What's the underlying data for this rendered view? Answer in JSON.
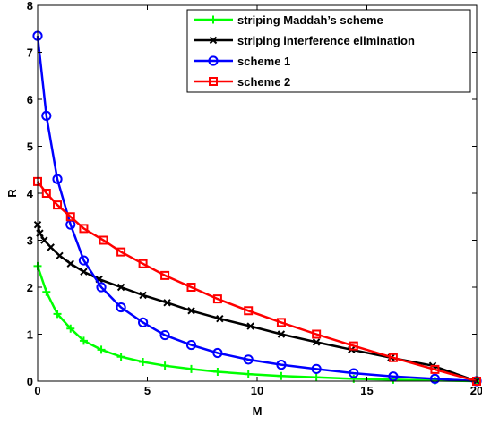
{
  "chart_data": {
    "type": "line",
    "xlabel": "M",
    "ylabel": "R",
    "xlim": [
      0,
      20
    ],
    "ylim": [
      0,
      8
    ],
    "xticks": [
      "0",
      "5",
      "10",
      "15",
      "20"
    ],
    "yticks": [
      "0",
      "1",
      "2",
      "3",
      "4",
      "5",
      "6",
      "7",
      "8"
    ],
    "grid": false,
    "legend_position": "top-right",
    "series": [
      {
        "name": "striping Maddah’s scheme",
        "color": "#00ff00",
        "marker": "plus",
        "x": [
          0,
          0.4,
          0.9,
          1.5,
          2.1,
          2.9,
          3.8,
          4.8,
          5.8,
          7.0,
          8.2,
          9.6,
          11.1,
          12.7,
          14.4,
          16.2,
          18.1,
          20
        ],
        "y": [
          2.45,
          1.9,
          1.43,
          1.12,
          0.86,
          0.67,
          0.52,
          0.41,
          0.33,
          0.26,
          0.2,
          0.15,
          0.11,
          0.08,
          0.05,
          0.03,
          0.015,
          0
        ]
      },
      {
        "name": "striping interference elimination",
        "color": "#000000",
        "marker": "x",
        "x": [
          0,
          0.1,
          0.3,
          0.6,
          1.0,
          1.5,
          2.1,
          2.8,
          3.8,
          4.8,
          5.9,
          7.0,
          8.3,
          9.7,
          11.1,
          12.7,
          14.3,
          16.1,
          18.0,
          20
        ],
        "y": [
          3.33,
          3.15,
          3.0,
          2.85,
          2.67,
          2.5,
          2.33,
          2.17,
          2.0,
          1.83,
          1.67,
          1.5,
          1.33,
          1.17,
          1.0,
          0.83,
          0.67,
          0.5,
          0.33,
          0
        ]
      },
      {
        "name": "scheme 1",
        "color": "#0000ff",
        "marker": "circle",
        "x": [
          0,
          0.4,
          0.9,
          1.5,
          2.1,
          2.9,
          3.8,
          4.8,
          5.8,
          7.0,
          8.2,
          9.6,
          11.1,
          12.7,
          14.4,
          16.2,
          18.1,
          20
        ],
        "y": [
          7.35,
          5.65,
          4.3,
          3.33,
          2.57,
          2.0,
          1.57,
          1.25,
          0.98,
          0.77,
          0.6,
          0.46,
          0.35,
          0.26,
          0.17,
          0.1,
          0.05,
          0
        ]
      },
      {
        "name": "scheme 2",
        "color": "#ff0000",
        "marker": "square",
        "x": [
          0,
          0.4,
          0.9,
          1.5,
          2.1,
          3.0,
          3.8,
          4.8,
          5.8,
          7.0,
          8.2,
          9.6,
          11.1,
          12.7,
          14.4,
          16.2,
          18.1,
          20
        ],
        "y": [
          4.25,
          4.0,
          3.75,
          3.5,
          3.25,
          3.0,
          2.75,
          2.5,
          2.25,
          2.0,
          1.75,
          1.5,
          1.25,
          1.0,
          0.75,
          0.5,
          0.25,
          0
        ]
      }
    ]
  }
}
